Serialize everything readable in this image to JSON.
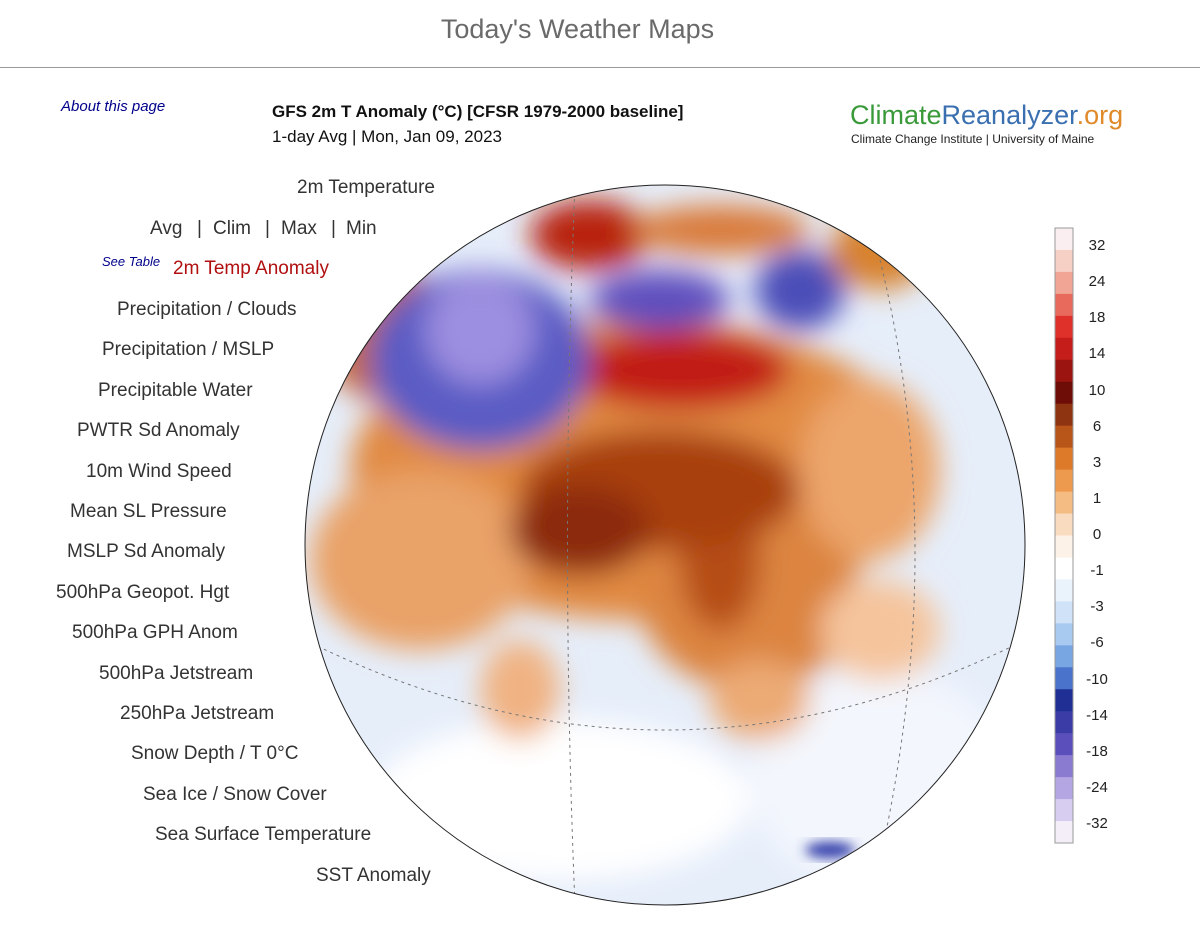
{
  "header": {
    "title": "Today's Weather Maps"
  },
  "about_link": "About this page",
  "map": {
    "title": "GFS 2m T Anomaly (°C) [CFSR 1979-2000 baseline]",
    "subtitle": "1-day Avg | Mon, Jan 09, 2023"
  },
  "logo": {
    "part1": "Climate",
    "part2": "Reanalyzer",
    "part3": ".org",
    "tagline": "Climate Change Institute | University of Maine"
  },
  "menu": {
    "temperature": "2m Temperature",
    "stats": [
      "Avg",
      "Clim",
      "Max",
      "Min"
    ],
    "separator": "|",
    "see_table": "See Table",
    "selected": "2m Temp Anomaly",
    "items": [
      "Precipitation / Clouds",
      "Precipitation / MSLP",
      "Precipitable Water",
      "PWTR Sd Anomaly",
      "10m Wind Speed",
      "Mean SL Pressure",
      "MSLP Sd Anomaly",
      "500hPa Geopot. Hgt",
      "500hPa GPH Anom",
      "500hPa Jetstream",
      "250hPa Jetstream",
      "Snow Depth / T 0°C",
      "Sea Ice / Snow Cover",
      "Sea Surface Temperature",
      "SST Anomaly"
    ]
  },
  "colorbar": {
    "labels": [
      32,
      24,
      18,
      14,
      10,
      6,
      3,
      1,
      0,
      -1,
      -3,
      -6,
      -10,
      -14,
      -18,
      -24,
      -32
    ],
    "colors": [
      "#fbeef0",
      "#f6d0c4",
      "#f0a595",
      "#e86a5c",
      "#e0302a",
      "#c41d1a",
      "#9c1410",
      "#6e0c08",
      "#8e3410",
      "#b85518",
      "#dc7a2a",
      "#ee9a4e",
      "#f4bc82",
      "#f9dcc0",
      "#fdf2e8",
      "#ffffff",
      "#eaf2fc",
      "#d0e2f7",
      "#a8c9f0",
      "#78a6e3",
      "#4a74cc",
      "#1f2f94",
      "#3b3ca6",
      "#5b50bb",
      "#8a7ad0",
      "#b4a6e2",
      "#d6cdf0",
      "#f4eef9"
    ]
  }
}
